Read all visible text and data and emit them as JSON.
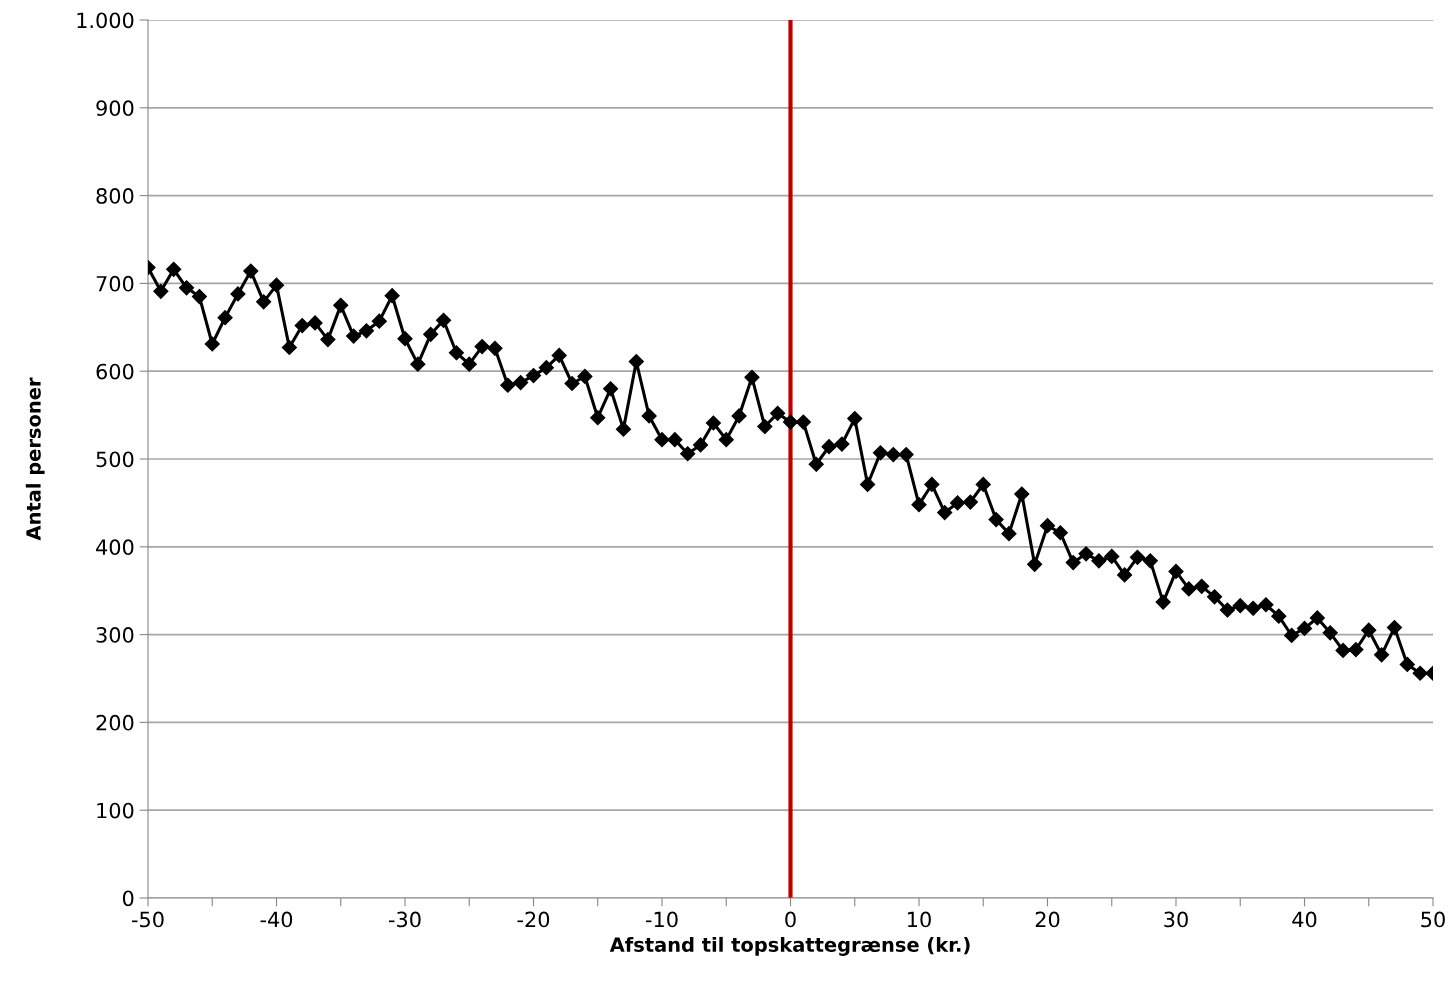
{
  "chart_data": {
    "type": "line",
    "xlabel": "Afstand til topskattegrænse (kr.)",
    "ylabel": "Antal personer",
    "x": [
      -50,
      -49,
      -48,
      -47,
      -46,
      -45,
      -44,
      -43,
      -42,
      -41,
      -40,
      -39,
      -38,
      -37,
      -36,
      -35,
      -34,
      -33,
      -32,
      -31,
      -30,
      -29,
      -28,
      -27,
      -26,
      -25,
      -24,
      -23,
      -22,
      -21,
      -20,
      -19,
      -18,
      -17,
      -16,
      -15,
      -14,
      -13,
      -12,
      -11,
      -10,
      -9,
      -8,
      -7,
      -6,
      -5,
      -4,
      -3,
      -2,
      -1,
      0,
      1,
      2,
      3,
      4,
      5,
      6,
      7,
      8,
      9,
      10,
      11,
      12,
      13,
      14,
      15,
      16,
      17,
      18,
      19,
      20,
      21,
      22,
      23,
      24,
      25,
      26,
      27,
      28,
      29,
      30,
      31,
      32,
      33,
      34,
      35,
      36,
      37,
      38,
      39,
      40,
      41,
      42,
      43,
      44,
      45,
      46,
      47,
      48,
      49,
      50
    ],
    "series": [
      {
        "color": "#000000",
        "values": [
          718,
          691,
          716,
          695,
          685,
          631,
          661,
          688,
          714,
          679,
          698,
          627,
          652,
          655,
          636,
          675,
          640,
          646,
          657,
          686,
          637,
          608,
          642,
          658,
          621,
          608,
          628,
          626,
          584,
          587,
          595,
          604,
          618,
          586,
          594,
          547,
          580,
          534,
          611,
          549,
          522,
          522,
          506,
          516,
          541,
          522,
          549,
          593,
          537,
          552,
          542,
          542,
          494,
          514,
          517,
          546,
          471,
          507,
          505,
          505,
          448,
          471,
          439,
          450,
          451,
          471,
          431,
          415,
          460,
          380,
          424,
          416,
          382,
          392,
          384,
          389,
          368,
          388,
          384,
          337,
          372,
          352,
          355,
          343,
          328,
          333,
          330,
          334,
          321,
          299,
          307,
          319,
          302,
          282,
          283,
          305,
          277,
          308,
          266,
          256,
          256
        ]
      }
    ],
    "marker": "diamond",
    "line_style": "solid",
    "grid": "y",
    "xlim": [
      -50,
      50
    ],
    "xticks": [
      {
        "value": -50,
        "label": "-50"
      },
      {
        "value": -45,
        "label": null
      },
      {
        "value": -40,
        "label": "-40"
      },
      {
        "value": -35,
        "label": null
      },
      {
        "value": -30,
        "label": "-30"
      },
      {
        "value": -25,
        "label": null
      },
      {
        "value": -20,
        "label": "-20"
      },
      {
        "value": -15,
        "label": null
      },
      {
        "value": -10,
        "label": "-10"
      },
      {
        "value": -5,
        "label": null
      },
      0,
      {
        "value": 5,
        "label": null
      },
      10,
      {
        "value": 15,
        "label": null
      },
      20,
      {
        "value": 25,
        "label": null
      },
      30,
      {
        "value": 35,
        "label": null
      },
      40,
      {
        "value": 45,
        "label": null
      },
      50
    ],
    "ylim": [
      0,
      1000
    ],
    "yticks": [
      0,
      100,
      200,
      300,
      400,
      500,
      600,
      700,
      800,
      900,
      {
        "value": 1000,
        "label": "1.000"
      }
    ],
    "ref_lines": [
      {
        "axis": "x",
        "value": 0,
        "color": "#c00000",
        "line_style": "solid"
      }
    ]
  }
}
